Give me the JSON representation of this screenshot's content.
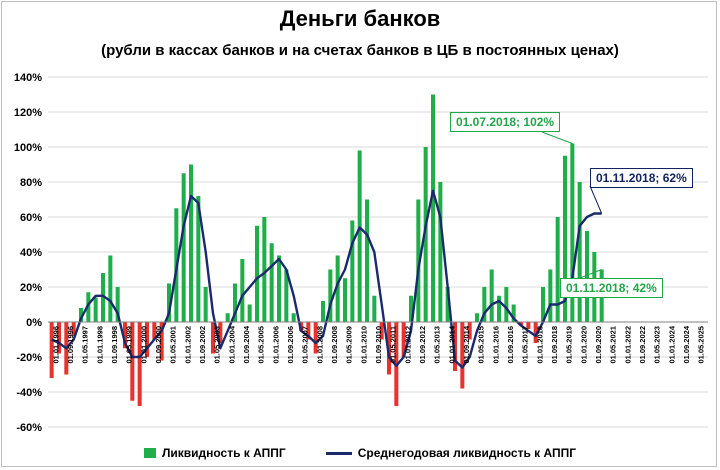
{
  "chart_data": {
    "type": "bar",
    "title": "Деньги банков",
    "subtitle": "(рубли в кассах банков и на счетах банков в ЦБ в постоянных ценах)",
    "y_ticks": [
      "140%",
      "120%",
      "100%",
      "80%",
      "60%",
      "40%",
      "20%",
      "0%",
      "-20%",
      "-40%",
      "-60%"
    ],
    "ylim": [
      -60,
      140
    ],
    "x_start": "1996-01",
    "x_ticks": [
      "01.01.1996",
      "01.09.1996",
      "01.05.1997",
      "01.01.1998",
      "01.09.1998",
      "01.05.1999",
      "01.01.2000",
      "01.09.2000",
      "01.05.2001",
      "01.01.2002",
      "01.09.2002",
      "01.05.2003",
      "01.01.2004",
      "01.09.2004",
      "01.05.2005",
      "01.01.2006",
      "01.09.2006",
      "01.05.2007",
      "01.01.2008",
      "01.09.2008",
      "01.05.2009",
      "01.01.2010",
      "01.09.2010",
      "01.05.2011",
      "01.01.2012",
      "01.09.2012",
      "01.05.2013",
      "01.01.2014",
      "01.09.2014",
      "01.05.2015",
      "01.01.2016",
      "01.09.2016",
      "01.05.2017",
      "01.01.2018",
      "01.09.2018",
      "01.05.2019",
      "01.01.2020",
      "01.09.2020",
      "01.05.2021",
      "01.01.2022",
      "01.09.2022",
      "01.05.2023",
      "01.01.2024",
      "01.09.2024",
      "01.05.2025"
    ],
    "bars_every_4_months": [
      -32,
      -18,
      -30,
      -8,
      8,
      17,
      14,
      28,
      38,
      20,
      -15,
      -45,
      -48,
      -20,
      -10,
      -22,
      22,
      65,
      85,
      90,
      72,
      20,
      -18,
      -12,
      5,
      22,
      36,
      10,
      55,
      60,
      45,
      38,
      30,
      5,
      -5,
      -10,
      -18,
      12,
      30,
      38,
      25,
      58,
      98,
      70,
      15,
      -10,
      -30,
      -48,
      -20,
      15,
      70,
      100,
      130,
      80,
      20,
      -28,
      -38,
      -10,
      5,
      20,
      30,
      15,
      20,
      10,
      -2,
      -4,
      -12,
      20,
      30,
      60,
      95,
      102,
      80,
      52,
      40,
      30
    ],
    "line_every_4_months": [
      -10,
      -12,
      -15,
      -10,
      2,
      10,
      15,
      15,
      12,
      5,
      -12,
      -20,
      -20,
      -15,
      -10,
      -5,
      5,
      30,
      55,
      72,
      68,
      40,
      5,
      -15,
      -5,
      5,
      15,
      20,
      25,
      28,
      32,
      36,
      30,
      15,
      -5,
      -8,
      -12,
      -8,
      10,
      22,
      30,
      45,
      54,
      50,
      40,
      10,
      -20,
      -25,
      -20,
      -5,
      30,
      55,
      75,
      60,
      20,
      -22,
      -26,
      -20,
      -5,
      5,
      10,
      12,
      8,
      2,
      -2,
      -5,
      -8,
      0,
      10,
      10,
      12,
      25,
      55,
      60,
      62,
      62
    ],
    "series": [
      {
        "name": "Ликвидность к АППГ",
        "color": "#1fae4a",
        "negative_color": "#e8322e"
      },
      {
        "name": "Среднегодовая ликвидность к АППГ",
        "color": "#1a2a6c"
      }
    ],
    "annotations": [
      {
        "text": "01.07.2018; 102%",
        "color": "#22a64a"
      },
      {
        "text": "01.11.2018; 62%",
        "color": "#12225f"
      },
      {
        "text": "01.11.2018; 42%",
        "color": "#22a64a"
      }
    ]
  }
}
